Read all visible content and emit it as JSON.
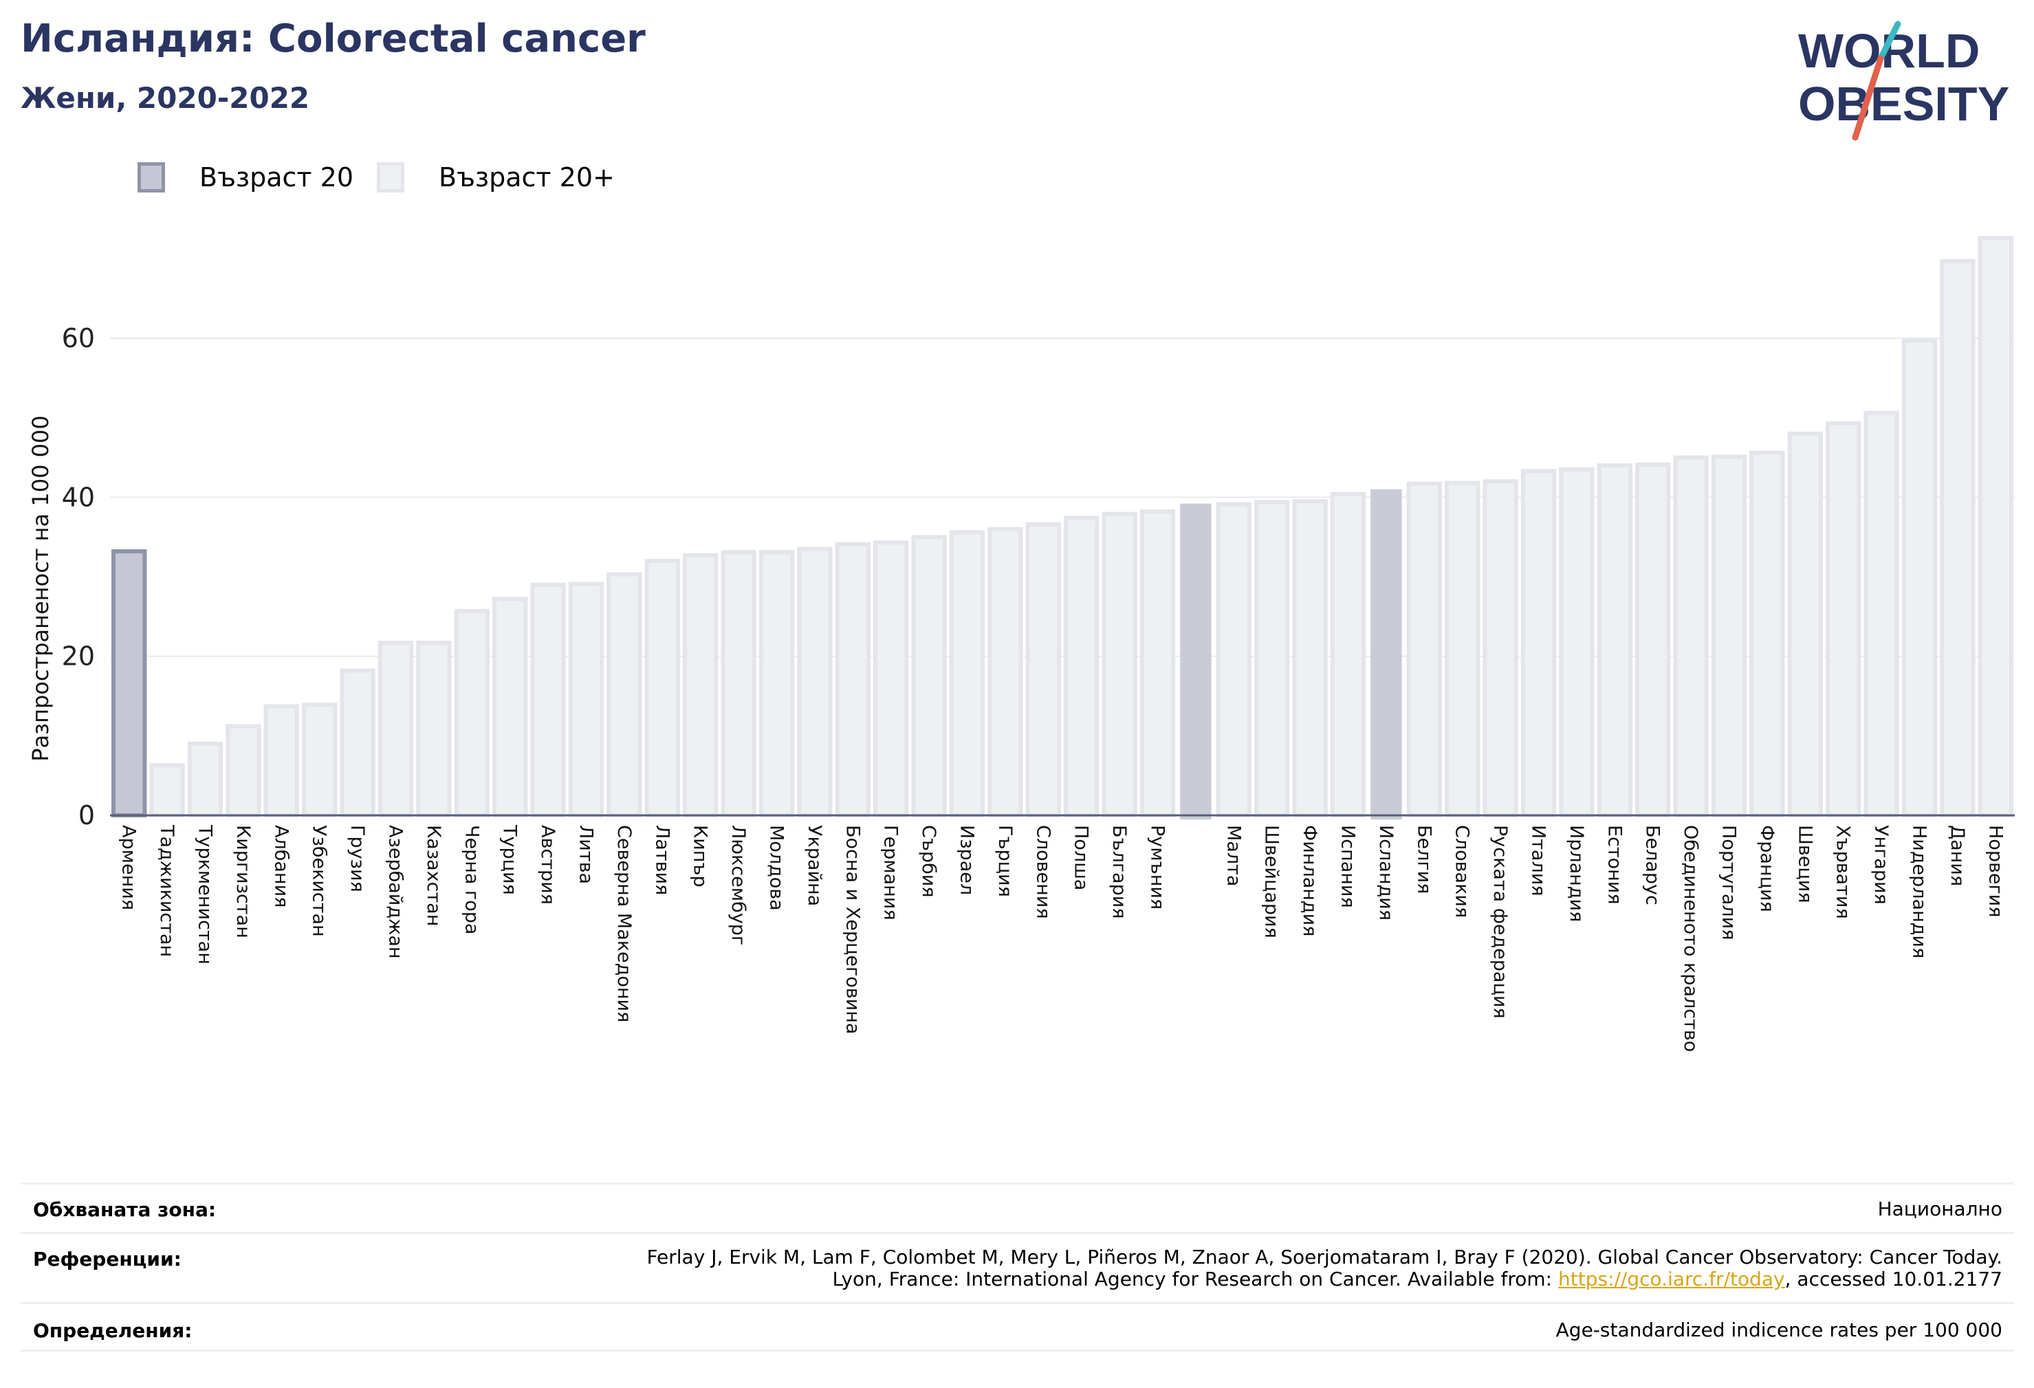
{
  "header": {
    "title": "Исландия: Colorectal cancer",
    "subtitle": "Жени, 2020-2022"
  },
  "logo": {
    "line1": "WORLD",
    "line2": "OBESITY",
    "colors": {
      "text": "#2b3562",
      "slash_top": "#3bb8c4",
      "slash_bottom": "#e0614e"
    }
  },
  "legend": {
    "items": [
      {
        "label": "Възраст 20",
        "color": "#c5c8d4"
      },
      {
        "label": "Възраст 20+",
        "color": "#eef0f4"
      }
    ]
  },
  "chart_data": {
    "type": "bar",
    "ylabel": "Разпространеност  на 100 000",
    "xlabel": "",
    "ylim": [
      0,
      74
    ],
    "yticks": [
      0,
      20,
      40,
      60
    ],
    "grid": true,
    "categories": [
      "Армения",
      "Таджикистан",
      "Туркменистан",
      "Киргизстан",
      "Албания",
      "Узбекистан",
      "Грузия",
      "Азербайджан",
      "Казахстан",
      "Черна гора",
      "Турция",
      "Австрия",
      "Литва",
      "Северна Македония",
      "Латвия",
      "Кипър",
      "Люксембург",
      "Молдова",
      "Украйна",
      "Босна и Херцеговина",
      "Германия",
      "Сърбия",
      "Израел",
      "Гърция",
      "Словения",
      "Полша",
      "България",
      "Румъния",
      "",
      "Малта",
      "Швейцария",
      "Финландия",
      "Испания",
      "Исландия",
      "Белгия",
      "Словакия",
      "Руската федерация",
      "Италия",
      "Ирландия",
      "Естония",
      "Беларус",
      "Обединеното кралство",
      "Португалия",
      "Франция",
      "Швеция",
      "Хърватия",
      "Унгария",
      "Нидерландия",
      "Дания",
      "Норвегия"
    ],
    "values": [
      33.2,
      6.3,
      9.0,
      11.2,
      13.7,
      13.9,
      18.2,
      21.7,
      21.7,
      25.7,
      27.2,
      29.0,
      29.1,
      30.3,
      32.0,
      32.7,
      33.1,
      33.1,
      33.5,
      34.1,
      34.3,
      35.0,
      35.6,
      36.0,
      36.6,
      37.4,
      37.9,
      38.2,
      39.2,
      39.1,
      39.4,
      39.5,
      40.4,
      41.0,
      41.7,
      41.8,
      42.0,
      43.3,
      43.5,
      44.0,
      44.1,
      45.0,
      45.1,
      45.6,
      48.0,
      49.3,
      50.6,
      59.7,
      69.7,
      72.6
    ],
    "series": [
      {
        "name": "Възраст 20",
        "indices": [
          0
        ]
      },
      {
        "name": "Възраст 20+",
        "indices": "all others"
      }
    ],
    "highlighted": [
      28,
      33
    ],
    "colors": {
      "age20_fill": "#c5c8d4",
      "age20_stroke": "#8f94a8",
      "age20plus_fill": "#eef0f4",
      "age20plus_stroke": "#e3e5ea",
      "highlight_fill": "#c9cbd6",
      "axis": "#5a5f78",
      "grid": "#e8eaef"
    }
  },
  "footer": {
    "coverage_label": "Обхваната зона:",
    "coverage_value": "Национално",
    "references_label": "Референции:",
    "references_line1": "Ferlay J, Ervik M, Lam F, Colombet M, Mery L, Piñeros M, Znaor A, Soerjomataram I, Bray F (2020). Global Cancer Observatory: Cancer Today.",
    "references_line2_pre": "Lyon, France: International Agency for Research on Cancer. Available from: ",
    "references_link": "https://gco.iarc.fr/today",
    "references_line2_post": ", accessed 10.01.2177",
    "definitions_label": "Определения:",
    "definitions_value": "Age-standardized indicence rates per 100 000"
  }
}
